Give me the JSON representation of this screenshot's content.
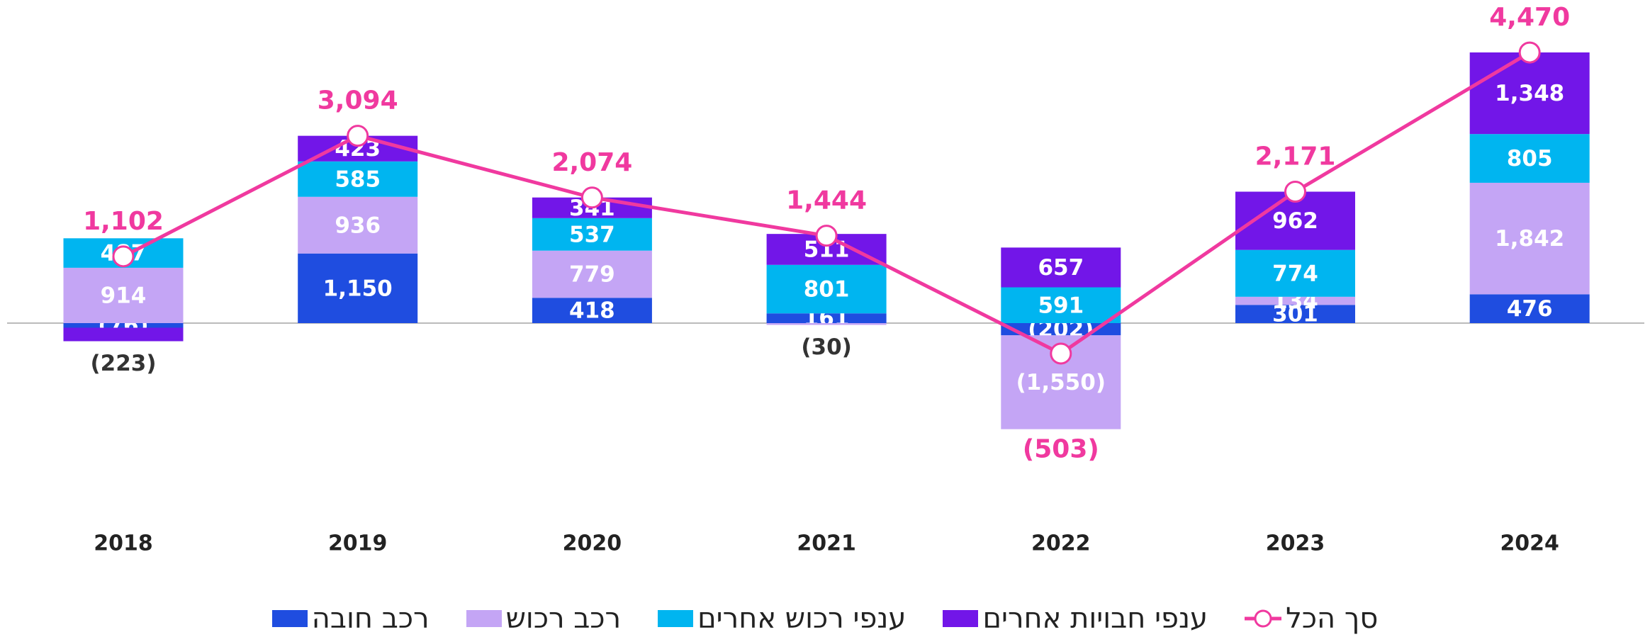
{
  "chart_data": {
    "type": "bar",
    "stacked": true,
    "categories": [
      "2018",
      "2019",
      "2020",
      "2021",
      "2022",
      "2023",
      "2024"
    ],
    "series": [
      {
        "name": "רכב חובה",
        "color": "#1f4de0",
        "values": [
          -76,
          1150,
          418,
          161,
          -202,
          301,
          476
        ],
        "value_labels": [
          "(76)",
          "1,150",
          "418",
          "161",
          "(202)",
          "301",
          "476"
        ]
      },
      {
        "name": "רכב רכוש",
        "color": "#c4a5f5",
        "values": [
          914,
          936,
          779,
          -30,
          -1550,
          134,
          1842
        ],
        "value_labels": [
          "914",
          "936",
          "779",
          "(30)",
          "(1,550)",
          "134",
          "1,842"
        ]
      },
      {
        "name": "ענפי רכוש אחרים",
        "color": "#00b5f0",
        "values": [
          487,
          585,
          537,
          801,
          591,
          774,
          805
        ],
        "value_labels": [
          "487",
          "585",
          "537",
          "801",
          "591",
          "774",
          "805"
        ]
      },
      {
        "name": "ענפי חבויות אחרים",
        "color": "#7216e8",
        "values": [
          -223,
          423,
          341,
          511,
          657,
          962,
          1348
        ],
        "value_labels": [
          "(223)",
          "423",
          "341",
          "511",
          "657",
          "962",
          "1,348"
        ]
      },
      {
        "name": "סך הכל",
        "type": "line",
        "color": "#f0399f",
        "values": [
          1102,
          3094,
          2074,
          1444,
          -503,
          2171,
          4470
        ],
        "value_labels": [
          "1,102",
          "3,094",
          "2,074",
          "1,444",
          "(503)",
          "2,171",
          "4,470"
        ]
      }
    ]
  }
}
